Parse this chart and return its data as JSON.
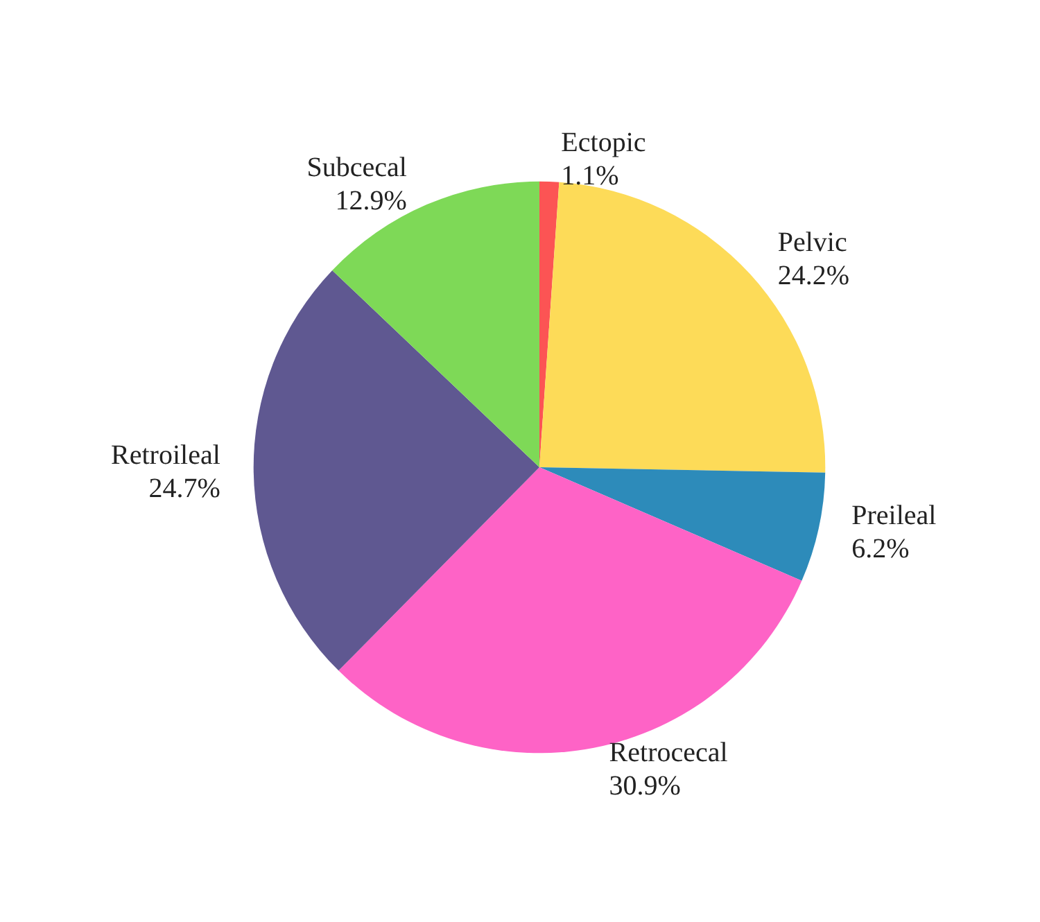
{
  "chart_data": {
    "type": "pie",
    "categories": [
      "Ectopic",
      "Pelvic",
      "Preileal",
      "Retrocecal",
      "Retroileal",
      "Subcecal"
    ],
    "values": [
      1.1,
      24.2,
      6.2,
      30.9,
      24.7,
      12.9
    ],
    "colors": [
      "#fc5454",
      "#fddb58",
      "#2d8bba",
      "#fe63c6",
      "#5f5891",
      "#7ed957"
    ],
    "value_labels": [
      "1.1%",
      "24.2%",
      "6.2%",
      "30.9%",
      "24.7%",
      "12.9%"
    ],
    "legend": false
  }
}
